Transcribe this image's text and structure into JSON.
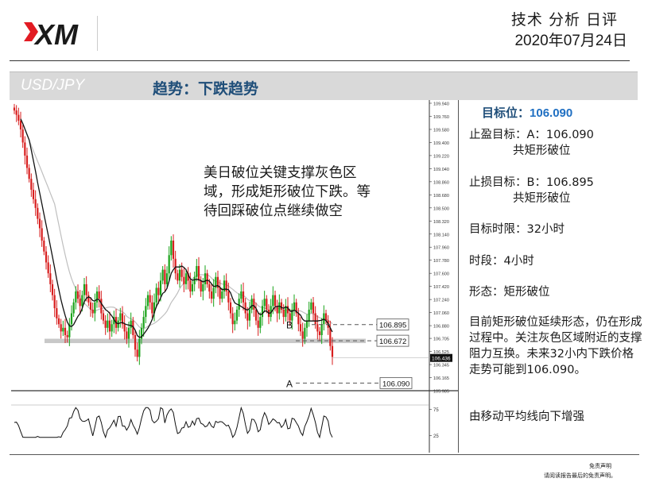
{
  "header": {
    "brand": "XM",
    "report_type": "技术 分析 日评",
    "date": "2020年07月24日"
  },
  "titlebar": {
    "pair": "USD/JPY",
    "trend": "趋势：下跌趋势"
  },
  "panel": {
    "target_label": "目标位：",
    "target_value": "106.090",
    "tp_label": "止盈目标：A：106.090",
    "tp_sub": "共矩形破位",
    "sl_label": "止损目标：B：106.895",
    "sl_sub": "共矩形破位",
    "horizon": "目标时限：32小时",
    "timeframe": "时段：4小时",
    "pattern": "形态：矩形破位",
    "description": "目前矩形破位延续形态，仍在形成过程中。关注灰色区域附近的支撑阻力互换。未来32小内下跌价格走势可能到106.090。",
    "ma_note": "由移动平均线向下增强"
  },
  "footer": {
    "disclaimer_title": "免责声明",
    "disclaimer_text": "请阅读报告最后的免责声明。"
  },
  "colors": {
    "up": "#1aa31a",
    "down": "#d81e1e",
    "title_blue": "#1f4e79",
    "target_blue": "#1f6fc2",
    "zone_grey": "#c8c8c8"
  },
  "chart_data": {
    "type": "candlestick",
    "symbol": "USD/JPY",
    "timeframe": "4H",
    "annotation": "美日破位关键支撑灰色区域，形成矩形破位下跌。等待回踩破位点继续做空",
    "y_ticks": [
      "109.940",
      "109.760",
      "109.580",
      "109.400",
      "109.220",
      "109.040",
      "108.860",
      "108.680",
      "108.500",
      "108.320",
      "108.140",
      "107.960",
      "107.780",
      "107.600",
      "107.420",
      "107.240",
      "107.060",
      "106.880",
      "106.705",
      "106.525",
      "106.345",
      "106.165",
      "105.985"
    ],
    "ylim": [
      105.985,
      109.94
    ],
    "levels": [
      {
        "label": "B",
        "value": "106.895"
      },
      {
        "label": "",
        "value": "106.672"
      },
      {
        "label": "A",
        "value": "106.090"
      }
    ],
    "current_price": "106.436",
    "support_zone": [
      106.64,
      106.7
    ],
    "close": [
      109.84,
      109.78,
      109.7,
      109.58,
      109.4,
      109.22,
      109.05,
      108.9,
      108.75,
      108.62,
      108.5,
      108.35,
      108.22,
      108.05,
      107.9,
      107.75,
      107.6,
      107.45,
      107.3,
      107.12,
      106.98,
      106.9,
      106.8,
      106.85,
      106.75,
      106.72,
      106.9,
      107.05,
      107.2,
      107.35,
      107.25,
      107.15,
      107.3,
      107.45,
      107.3,
      107.2,
      107.1,
      107.05,
      107.2,
      107.35,
      107.25,
      107.05,
      106.95,
      106.85,
      106.95,
      106.8,
      106.9,
      107.0,
      106.85,
      106.95,
      107.05,
      106.9,
      106.8,
      106.7,
      106.85,
      106.95,
      106.75,
      106.55,
      106.45,
      106.7,
      106.85,
      107.0,
      107.15,
      107.3,
      107.2,
      107.05,
      107.2,
      107.4,
      107.3,
      107.5,
      107.65,
      107.45,
      107.6,
      107.85,
      108.05,
      107.8,
      107.6,
      107.5,
      107.65,
      107.55,
      107.45,
      107.6,
      107.5,
      107.35,
      107.45,
      107.55,
      107.7,
      107.5,
      107.35,
      107.45,
      107.6,
      107.45,
      107.35,
      107.25,
      107.4,
      107.55,
      107.4,
      107.25,
      107.35,
      107.5,
      107.35,
      107.2,
      107.05,
      106.9,
      106.95,
      107.1,
      107.25,
      107.35,
      107.2,
      107.05,
      106.95,
      107.1,
      107.25,
      107.1,
      106.95,
      106.85,
      107.0,
      107.15,
      107.25,
      107.1,
      107.0,
      107.15,
      107.3,
      107.15,
      107.05,
      107.2,
      107.1,
      107.0,
      107.15,
      107.05,
      106.95,
      107.1,
      107.2,
      107.05,
      106.9,
      106.8,
      106.7,
      106.85,
      106.95,
      107.1,
      107.2,
      107.05,
      106.9,
      106.8,
      106.75,
      106.9,
      107.05,
      106.95,
      106.85,
      106.6,
      106.45
    ],
    "indicator_levels": [
      "75",
      "25"
    ]
  }
}
